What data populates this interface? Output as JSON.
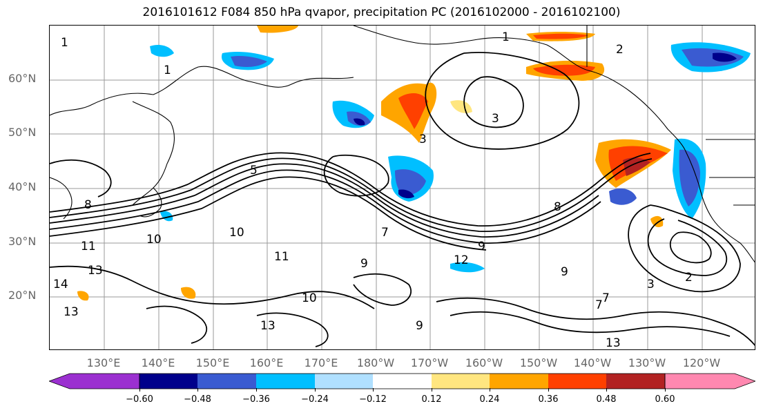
{
  "title": "2016101612 F084 850 hPa qvapor, precipitation PC (2016102000 - 2016102100)",
  "map": {
    "lat_labels": [
      "60°N",
      "50°N",
      "40°N",
      "30°N",
      "20°N"
    ],
    "lon_labels": [
      "130°E",
      "140°E",
      "150°E",
      "160°E",
      "170°E",
      "180°W",
      "170°W",
      "160°W",
      "150°W",
      "140°W",
      "130°W",
      "120°W"
    ],
    "contour_labels": [
      "1",
      "1",
      "1",
      "2",
      "3",
      "3",
      "5",
      "7",
      "7",
      "8",
      "9",
      "9",
      "9",
      "10",
      "10",
      "10",
      "11",
      "11",
      "12",
      "13",
      "13",
      "13",
      "13",
      "8",
      "2",
      "3",
      "14",
      "9",
      "7"
    ]
  },
  "colorbar": {
    "colors": [
      "#9b30d0",
      "#00008b",
      "#3a5bd1",
      "#00bfff",
      "#b0e0ff",
      "#ffffff",
      "#ffe680",
      "#ffa500",
      "#ff4000",
      "#b22222",
      "#ff88b0"
    ],
    "tick_labels": [
      "−0.60",
      "−0.48",
      "−0.36",
      "−0.24",
      "−0.12",
      "0.12",
      "0.24",
      "0.36",
      "0.48",
      "0.60"
    ]
  }
}
